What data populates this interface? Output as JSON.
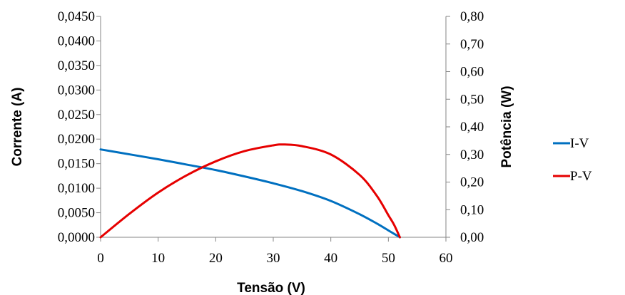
{
  "chart_data": {
    "type": "line",
    "xlabel": "Tensão (V)",
    "ylabel_left": "Corrente (A)",
    "ylabel_right": "Potência (W)",
    "xlim": [
      0,
      60
    ],
    "ylim_left": [
      0,
      0.045
    ],
    "ylim_right": [
      0,
      0.8
    ],
    "x_ticks": [
      "0",
      "10",
      "20",
      "30",
      "40",
      "50",
      "60"
    ],
    "y_left_ticks": [
      "0,0000",
      "0,0050",
      "0,0100",
      "0,0150",
      "0,0200",
      "0,0250",
      "0,0300",
      "0,0350",
      "0,0400",
      "0,0450"
    ],
    "y_right_ticks": [
      "0,00",
      "0,10",
      "0,20",
      "0,30",
      "0,40",
      "0,50",
      "0,60",
      "0,70",
      "0,80"
    ],
    "grid": false,
    "legend_position": "right",
    "series": [
      {
        "name": "I-V",
        "axis": "left",
        "color": "#0070C0",
        "x": [
          0,
          5,
          10,
          15,
          20,
          25,
          30,
          35,
          40,
          45,
          48,
          50,
          51,
          52
        ],
        "y": [
          0.0179,
          0.0169,
          0.0159,
          0.0148,
          0.0137,
          0.0124,
          0.011,
          0.0094,
          0.0074,
          0.0047,
          0.0028,
          0.0014,
          0.0007,
          0.0
        ]
      },
      {
        "name": "P-V",
        "axis": "right",
        "color": "#E60000",
        "x": [
          0,
          5,
          10,
          15,
          20,
          25,
          30,
          32,
          35,
          40,
          45,
          48,
          50,
          51,
          52
        ],
        "y": [
          0.0,
          0.085,
          0.162,
          0.225,
          0.275,
          0.312,
          0.333,
          0.336,
          0.33,
          0.3,
          0.226,
          0.15,
          0.08,
          0.045,
          0.0
        ]
      }
    ]
  }
}
